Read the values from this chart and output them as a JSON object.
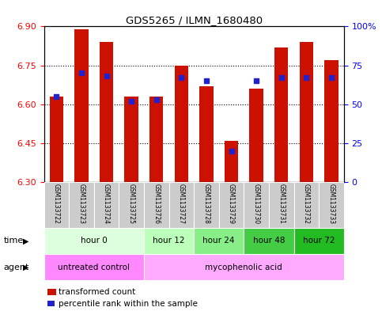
{
  "title": "GDS5265 / ILMN_1680480",
  "samples": [
    "GSM1133722",
    "GSM1133723",
    "GSM1133724",
    "GSM1133725",
    "GSM1133726",
    "GSM1133727",
    "GSM1133728",
    "GSM1133729",
    "GSM1133730",
    "GSM1133731",
    "GSM1133732",
    "GSM1133733"
  ],
  "bar_values": [
    6.63,
    6.89,
    6.84,
    6.63,
    6.63,
    6.75,
    6.67,
    6.46,
    6.66,
    6.82,
    6.84,
    6.77
  ],
  "percentile_values": [
    55,
    70,
    68,
    52,
    53,
    67,
    65,
    20,
    65,
    67,
    67,
    67
  ],
  "ylim_left": [
    6.3,
    6.9
  ],
  "ylim_right": [
    0,
    100
  ],
  "yticks_left": [
    6.3,
    6.45,
    6.6,
    6.75,
    6.9
  ],
  "yticks_right": [
    0,
    25,
    50,
    75,
    100
  ],
  "ytick_labels_right": [
    "0",
    "25",
    "50",
    "75",
    "100%"
  ],
  "bar_color": "#cc1100",
  "percentile_color": "#2222cc",
  "bar_bottom": 6.3,
  "time_groups": [
    {
      "label": "hour 0",
      "start": 0,
      "end": 4,
      "color": "#ddffdd"
    },
    {
      "label": "hour 12",
      "start": 4,
      "end": 6,
      "color": "#bbffbb"
    },
    {
      "label": "hour 24",
      "start": 6,
      "end": 8,
      "color": "#88ee88"
    },
    {
      "label": "hour 48",
      "start": 8,
      "end": 10,
      "color": "#44cc44"
    },
    {
      "label": "hour 72",
      "start": 10,
      "end": 12,
      "color": "#22bb22"
    }
  ],
  "agent_groups": [
    {
      "label": "untreated control",
      "start": 0,
      "end": 4,
      "color": "#ff88ff"
    },
    {
      "label": "mycophenolic acid",
      "start": 4,
      "end": 12,
      "color": "#ffaaff"
    }
  ],
  "legend_bar_label": "transformed count",
  "legend_pct_label": "percentile rank within the sample",
  "xlabel_time": "time",
  "xlabel_agent": "agent",
  "sample_bg_color": "#cccccc",
  "fig_bg_color": "#ffffff",
  "plot_bg_color": "#ffffff",
  "bar_width": 0.55
}
